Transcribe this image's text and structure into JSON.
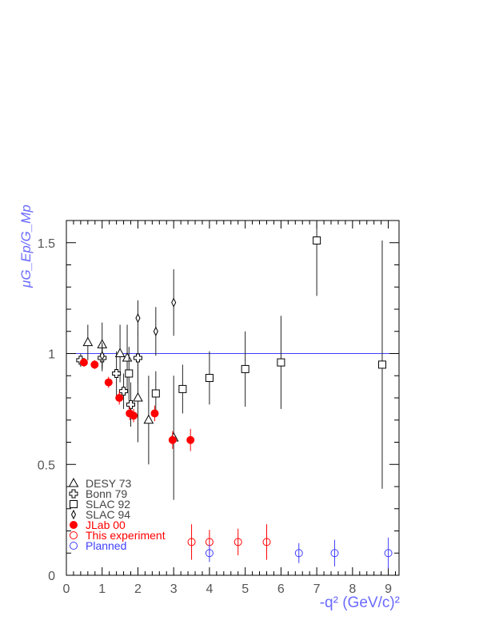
{
  "chart_data": {
    "type": "scatter",
    "title": "",
    "ylabel": "μG_Ep/G_Mp",
    "xlabel": "-q² (GeV/c)²",
    "xlim": [
      0,
      9.3
    ],
    "ylim": [
      0,
      1.6
    ],
    "x_ticks": [
      0,
      1,
      2,
      3,
      4,
      5,
      6,
      7,
      8,
      9
    ],
    "x_tick_labels": [
      "0",
      "1",
      "2",
      "3",
      "4",
      "5",
      "6",
      "7",
      "8",
      "9"
    ],
    "y_ticks": [
      0,
      0.5,
      1,
      1.5
    ],
    "y_tick_labels": [
      "0",
      "0.5",
      "1",
      "1.5"
    ],
    "reference_line": 1.0,
    "legend_position": "bottom-left",
    "colors": {
      "black": "#000000",
      "red": "#ff0000",
      "blue": "#4040ff",
      "axis_label": "#6a6aff"
    },
    "series": [
      {
        "name": "DESY 73",
        "marker": "triangle-open",
        "color": "#000000",
        "points": [
          {
            "x": 0.6,
            "y": 1.05,
            "err": 0.08
          },
          {
            "x": 1.0,
            "y": 1.04,
            "err": 0.1
          },
          {
            "x": 1.5,
            "y": 1.0,
            "err": 0.13
          },
          {
            "x": 1.7,
            "y": 0.98,
            "err": 0.15
          },
          {
            "x": 2.0,
            "y": 0.8,
            "err": 0.2
          },
          {
            "x": 2.3,
            "y": 0.7,
            "err": 0.2
          },
          {
            "x": 3.0,
            "y": 0.62,
            "err": 0.28
          }
        ]
      },
      {
        "name": "Bonn 79",
        "marker": "cross-open",
        "color": "#000000",
        "points": [
          {
            "x": 0.4,
            "y": 0.97,
            "err": 0.03
          },
          {
            "x": 1.0,
            "y": 0.98,
            "err": 0.06
          },
          {
            "x": 1.4,
            "y": 0.91,
            "err": 0.1
          },
          {
            "x": 1.6,
            "y": 0.83,
            "err": 0.08
          },
          {
            "x": 1.8,
            "y": 0.77,
            "err": 0.1
          },
          {
            "x": 2.0,
            "y": 0.98,
            "err": 0.12
          }
        ]
      },
      {
        "name": "SLAC 92",
        "marker": "square-open",
        "color": "#000000",
        "points": [
          {
            "x": 1.75,
            "y": 0.91,
            "err": 0.12
          },
          {
            "x": 2.5,
            "y": 0.82,
            "err": 0.1
          },
          {
            "x": 3.25,
            "y": 0.84,
            "err": 0.11
          },
          {
            "x": 4.0,
            "y": 0.89,
            "err": 0.12
          },
          {
            "x": 5.0,
            "y": 0.93,
            "err": 0.17
          },
          {
            "x": 6.0,
            "y": 0.96,
            "err": 0.21
          },
          {
            "x": 7.0,
            "y": 1.51,
            "err": 0.25
          },
          {
            "x": 8.83,
            "y": 0.95,
            "err": 0.56
          }
        ]
      },
      {
        "name": "SLAC 94",
        "marker": "diamond-open",
        "color": "#000000",
        "points": [
          {
            "x": 1.0,
            "y": 0.99,
            "err": 0.06
          },
          {
            "x": 2.0,
            "y": 1.16,
            "err": 0.08
          },
          {
            "x": 2.5,
            "y": 1.1,
            "err": 0.11
          },
          {
            "x": 3.0,
            "y": 1.23,
            "err": 0.15
          }
        ]
      },
      {
        "name": "JLab 00",
        "marker": "circle-filled",
        "color": "#ff0000",
        "points": [
          {
            "x": 0.49,
            "y": 0.96,
            "err": 0.02
          },
          {
            "x": 0.79,
            "y": 0.95,
            "err": 0.02
          },
          {
            "x": 1.18,
            "y": 0.87,
            "err": 0.025
          },
          {
            "x": 1.48,
            "y": 0.8,
            "err": 0.03
          },
          {
            "x": 1.77,
            "y": 0.73,
            "err": 0.03
          },
          {
            "x": 1.88,
            "y": 0.72,
            "err": 0.03
          },
          {
            "x": 2.47,
            "y": 0.73,
            "err": 0.035
          },
          {
            "x": 2.97,
            "y": 0.61,
            "err": 0.04
          },
          {
            "x": 3.47,
            "y": 0.61,
            "err": 0.05
          }
        ]
      },
      {
        "name": "This experiment",
        "marker": "circle-open",
        "color": "#ff0000",
        "points": [
          {
            "x": 3.5,
            "y": 0.15,
            "err": 0.08
          },
          {
            "x": 4.0,
            "y": 0.15,
            "err": 0.055
          },
          {
            "x": 4.8,
            "y": 0.15,
            "err": 0.06
          },
          {
            "x": 5.6,
            "y": 0.15,
            "err": 0.08
          }
        ]
      },
      {
        "name": "Planned",
        "marker": "circle-open",
        "color": "#4040ff",
        "points": [
          {
            "x": 4.0,
            "y": 0.1,
            "err": 0.04
          },
          {
            "x": 6.5,
            "y": 0.1,
            "err": 0.045
          },
          {
            "x": 7.5,
            "y": 0.1,
            "err": 0.06
          },
          {
            "x": 9.0,
            "y": 0.1,
            "err": 0.07
          }
        ]
      }
    ]
  }
}
